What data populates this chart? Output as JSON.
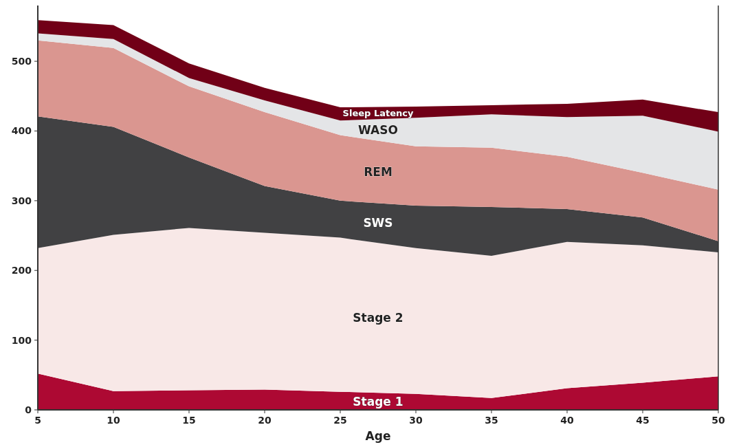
{
  "chart_data": {
    "type": "area",
    "stacked": true,
    "xlabel": "Age",
    "x": [
      5,
      10,
      15,
      20,
      25,
      30,
      35,
      40,
      45,
      50
    ],
    "series": [
      {
        "name": "Stage 1",
        "color": "#ad0933",
        "values": [
          52,
          27,
          28,
          29,
          26,
          23,
          17,
          31,
          39,
          48
        ]
      },
      {
        "name": "Stage 2",
        "color": "#f8e8e7",
        "values": [
          180,
          224,
          233,
          225,
          221,
          209,
          204,
          210,
          197,
          178
        ]
      },
      {
        "name": "SWS",
        "color": "#414143",
        "values": [
          189,
          155,
          101,
          67,
          53,
          61,
          70,
          47,
          40,
          16
        ]
      },
      {
        "name": "REM",
        "color": "#da9690",
        "values": [
          109,
          113,
          102,
          106,
          94,
          85,
          85,
          75,
          64,
          74
        ]
      },
      {
        "name": "WASO",
        "color": "#e4e5e7",
        "values": [
          10,
          13,
          12,
          17,
          21,
          41,
          48,
          57,
          82,
          83
        ]
      },
      {
        "name": "Sleep Latency",
        "color": "#710017",
        "values": [
          19,
          20,
          21,
          18,
          19,
          16,
          13,
          19,
          23,
          28
        ]
      }
    ],
    "xlim": [
      5,
      50
    ],
    "xticks": [
      5,
      10,
      15,
      20,
      25,
      30,
      35,
      40,
      45,
      50
    ],
    "ylim": [
      0,
      580
    ],
    "yticks": [
      0,
      100,
      200,
      300,
      400,
      500
    ],
    "grid": false
  }
}
